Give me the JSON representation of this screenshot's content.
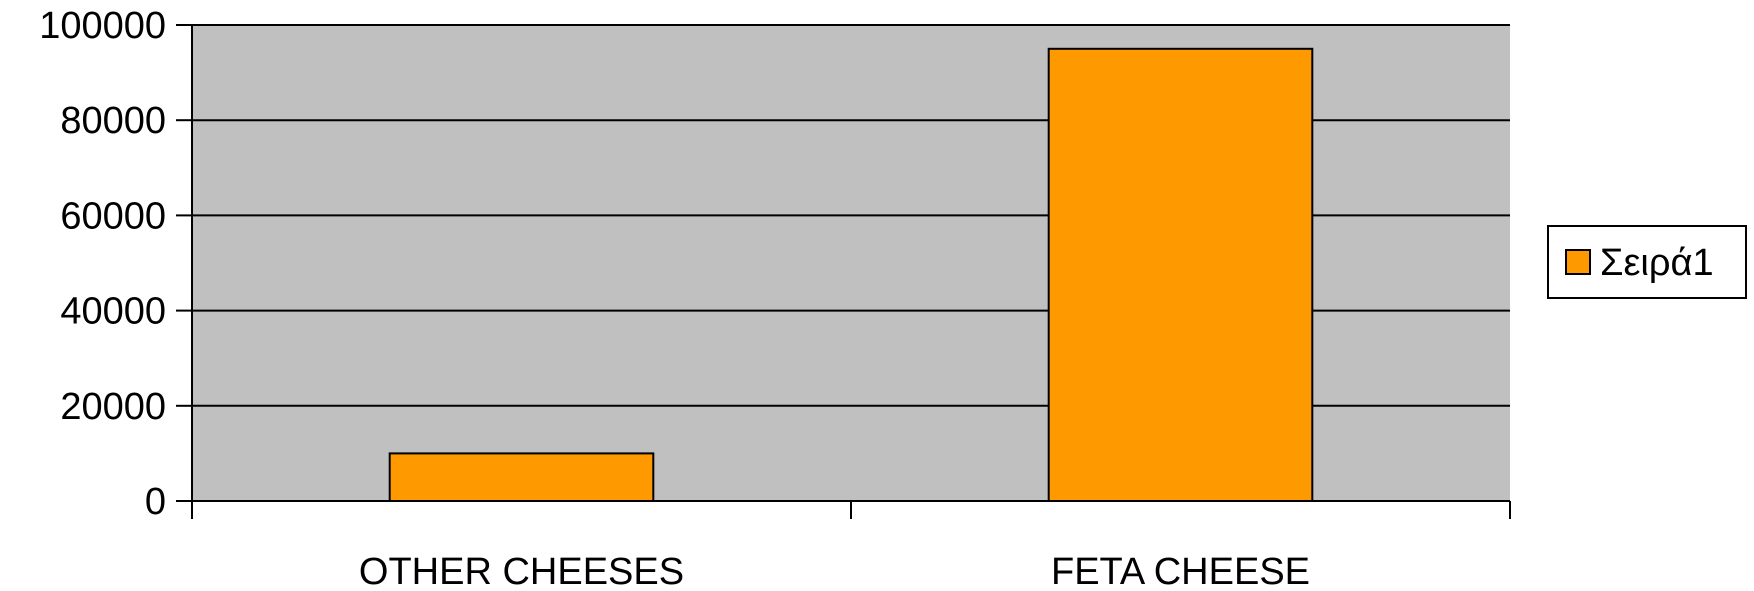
{
  "chart_data": {
    "type": "bar",
    "title": "",
    "xlabel": "",
    "ylabel": "",
    "categories": [
      "OTHER CHEESES",
      "FETA CHEESE"
    ],
    "series": [
      {
        "name": "Σειρά1",
        "values": [
          10000,
          95000
        ],
        "color": "#FF9900"
      }
    ],
    "ylim": [
      0,
      100000
    ],
    "yticks": [
      "0",
      "20000",
      "40000",
      "60000",
      "80000",
      "100000"
    ],
    "grid": true,
    "legend_position": "right",
    "colors": {
      "plot_background": "#C0C0C0",
      "gridline": "#000000",
      "bar_fill": "#FF9900",
      "bar_border": "#000000"
    }
  }
}
